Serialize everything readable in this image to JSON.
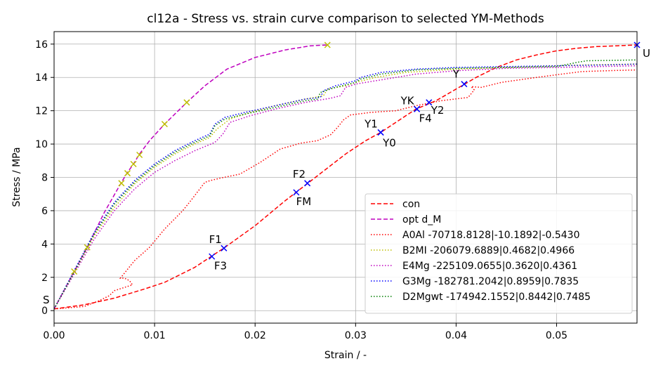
{
  "chart_data": {
    "type": "line",
    "title": "cl12a - Stress vs. strain curve comparison to selected YM-Methods",
    "xlabel": "Strain / -",
    "ylabel": "Stress / MPa",
    "xlim": [
      0.0,
      0.058
    ],
    "ylim": [
      -0.75,
      16.75
    ],
    "xticks": [
      0.0,
      0.01,
      0.02,
      0.03,
      0.04,
      0.05
    ],
    "xticklabels": [
      "0.00",
      "0.01",
      "0.02",
      "0.03",
      "0.04",
      "0.05"
    ],
    "yticks": [
      0,
      2,
      4,
      6,
      8,
      10,
      12,
      14,
      16
    ],
    "yticklabels": [
      "0",
      "2",
      "4",
      "6",
      "8",
      "10",
      "12",
      "14",
      "16"
    ],
    "grid": true,
    "legend_position": "lower-right",
    "series": [
      {
        "name": "con",
        "color": "#ff0000",
        "dash": "dashed",
        "x": [
          0.0,
          0.003,
          0.006,
          0.009,
          0.011,
          0.014,
          0.017,
          0.02,
          0.023,
          0.026,
          0.029,
          0.031,
          0.0325,
          0.034,
          0.036,
          0.038,
          0.04,
          0.042,
          0.044,
          0.046,
          0.048,
          0.05,
          0.052,
          0.054,
          0.056,
          0.058
        ],
        "y": [
          0.1,
          0.35,
          0.75,
          1.3,
          1.7,
          2.6,
          3.8,
          5.1,
          6.6,
          8.0,
          9.4,
          10.2,
          10.7,
          11.3,
          12.1,
          12.6,
          13.3,
          14.0,
          14.6,
          15.05,
          15.35,
          15.6,
          15.75,
          15.85,
          15.9,
          15.95
        ]
      },
      {
        "name": "opt d_M",
        "color": "#bf00bf",
        "dash": "dashed",
        "x": [
          0.0,
          0.002,
          0.0033,
          0.005,
          0.0067,
          0.0073,
          0.0079,
          0.0085,
          0.0095,
          0.011,
          0.0132,
          0.015,
          0.0172,
          0.02,
          0.023,
          0.0255,
          0.0272
        ],
        "y": [
          0.1,
          2.35,
          3.8,
          5.9,
          7.7,
          8.3,
          8.8,
          9.4,
          10.2,
          11.2,
          12.5,
          13.5,
          14.5,
          15.2,
          15.65,
          15.9,
          15.95
        ]
      },
      {
        "name": "A0Al -70718.8128|-10.1892|-0.5430",
        "color": "#ff0000",
        "dash": "dotted",
        "x": [
          0.0,
          0.002,
          0.003,
          0.0045,
          0.0055,
          0.006,
          0.0078,
          0.0075,
          0.007,
          0.0066,
          0.0068,
          0.008,
          0.0095,
          0.011,
          0.0128,
          0.0136,
          0.015,
          0.0155,
          0.0165,
          0.0185,
          0.0205,
          0.0225,
          0.0245,
          0.0262,
          0.0275,
          0.0282,
          0.0288,
          0.0295,
          0.0315,
          0.034,
          0.036,
          0.0385,
          0.0412,
          0.0418,
          0.0415,
          0.0425,
          0.0445,
          0.048,
          0.0505,
          0.0525,
          0.055,
          0.058
        ],
        "y": [
          0.1,
          0.2,
          0.25,
          0.6,
          0.9,
          1.2,
          1.55,
          1.8,
          1.95,
          1.95,
          2.1,
          3.0,
          3.8,
          4.9,
          6.0,
          6.6,
          7.7,
          7.8,
          7.95,
          8.2,
          8.9,
          9.7,
          10.05,
          10.2,
          10.55,
          11.0,
          11.45,
          11.75,
          11.9,
          12.0,
          12.3,
          12.6,
          12.8,
          13.25,
          13.45,
          13.4,
          13.7,
          14.0,
          14.2,
          14.35,
          14.4,
          14.45
        ]
      },
      {
        "name": "B2MI -206079.6889|0.4682|0.4966",
        "color": "#bfbf00",
        "dash": "dotted",
        "x": [
          0.0,
          0.002,
          0.004,
          0.006,
          0.008,
          0.01,
          0.012,
          0.014,
          0.0155,
          0.0162,
          0.0175,
          0.0195,
          0.022,
          0.025,
          0.0268,
          0.0272,
          0.029,
          0.03,
          0.032,
          0.035,
          0.04,
          0.045,
          0.05,
          0.053,
          0.058
        ],
        "y": [
          0.1,
          2.3,
          4.5,
          6.2,
          7.6,
          8.6,
          9.4,
          10.0,
          10.4,
          10.9,
          11.5,
          11.9,
          12.3,
          12.7,
          12.9,
          13.3,
          13.5,
          13.7,
          14.0,
          14.3,
          14.5,
          14.6,
          14.7,
          14.75,
          14.8
        ]
      },
      {
        "name": "E4Mg -225109.0655|0.3620|0.4361",
        "color": "#bf00bf",
        "dash": "dotted",
        "x": [
          0.0,
          0.002,
          0.004,
          0.006,
          0.008,
          0.01,
          0.012,
          0.014,
          0.016,
          0.0168,
          0.0175,
          0.0195,
          0.022,
          0.025,
          0.0275,
          0.0285,
          0.029,
          0.03,
          0.033,
          0.036,
          0.04,
          0.045,
          0.05,
          0.054,
          0.058
        ],
        "y": [
          0.1,
          2.2,
          4.3,
          6.0,
          7.3,
          8.3,
          9.0,
          9.6,
          10.1,
          10.6,
          11.3,
          11.7,
          12.1,
          12.5,
          12.75,
          12.9,
          13.4,
          13.6,
          13.9,
          14.2,
          14.4,
          14.55,
          14.6,
          14.65,
          14.7
        ]
      },
      {
        "name": "G3Mg -182781.2042|0.8959|0.7835",
        "color": "#0000ff",
        "dash": "dotted",
        "x": [
          0.0,
          0.002,
          0.004,
          0.006,
          0.008,
          0.01,
          0.012,
          0.014,
          0.0155,
          0.016,
          0.017,
          0.019,
          0.022,
          0.025,
          0.0265,
          0.0268,
          0.028,
          0.03,
          0.0305,
          0.0325,
          0.036,
          0.04,
          0.045,
          0.05,
          0.055,
          0.058
        ],
        "y": [
          0.1,
          2.4,
          4.7,
          6.5,
          7.8,
          8.8,
          9.6,
          10.2,
          10.6,
          11.2,
          11.6,
          11.9,
          12.3,
          12.7,
          12.8,
          13.2,
          13.5,
          13.8,
          14.0,
          14.3,
          14.5,
          14.6,
          14.65,
          14.7,
          14.75,
          14.8
        ]
      },
      {
        "name": "D2Mgwt -174942.1552|0.8442|0.7485",
        "color": "#007f00",
        "dash": "dotted",
        "x": [
          0.0,
          0.002,
          0.004,
          0.006,
          0.008,
          0.01,
          0.012,
          0.014,
          0.0155,
          0.016,
          0.017,
          0.019,
          0.022,
          0.025,
          0.0262,
          0.0265,
          0.028,
          0.03,
          0.0305,
          0.0325,
          0.036,
          0.04,
          0.045,
          0.05,
          0.052,
          0.053,
          0.058
        ],
        "y": [
          0.1,
          2.3,
          4.6,
          6.4,
          7.7,
          8.7,
          9.5,
          10.1,
          10.5,
          11.1,
          11.5,
          11.8,
          12.2,
          12.6,
          12.7,
          13.1,
          13.4,
          13.7,
          13.9,
          14.2,
          14.45,
          14.55,
          14.6,
          14.65,
          14.9,
          15.0,
          15.05
        ]
      }
    ],
    "yellow_markers": {
      "color": "#bfbf00",
      "x": [
        0.002,
        0.0033,
        0.0067,
        0.0073,
        0.0079,
        0.0085,
        0.011,
        0.0132,
        0.0272
      ],
      "y": [
        2.35,
        3.8,
        7.65,
        8.25,
        8.8,
        9.35,
        11.2,
        12.5,
        15.95
      ]
    },
    "points": [
      {
        "label": "S",
        "x": 0.0,
        "y": 0.1,
        "marker": false,
        "dx": -16,
        "dy": -8
      },
      {
        "label": "U",
        "x": 0.058,
        "y": 15.95,
        "marker": true,
        "dx": 8,
        "dy": 17
      },
      {
        "label": "F1",
        "x": 0.0157,
        "y": 3.25,
        "marker": true,
        "dx": -4,
        "dy": -19
      },
      {
        "label": "F3",
        "x": 0.0169,
        "y": 3.75,
        "marker": true,
        "dx": -14,
        "dy": 30
      },
      {
        "label": "F2",
        "x": 0.0241,
        "y": 7.1,
        "marker": true,
        "dx": -5,
        "dy": -21
      },
      {
        "label": "FM",
        "x": 0.0252,
        "y": 7.65,
        "marker": true,
        "dx": -16,
        "dy": 31
      },
      {
        "label": "Y1",
        "x": 0.0325,
        "y": 10.7,
        "marker": true,
        "dx": -23,
        "dy": -7
      },
      {
        "label": "Y0",
        "x": 0.0325,
        "y": 10.7,
        "marker": true,
        "dx": 3,
        "dy": 20
      },
      {
        "label": "YK",
        "x": 0.0361,
        "y": 12.1,
        "marker": true,
        "dx": -23,
        "dy": -7
      },
      {
        "label": "F4",
        "x": 0.0361,
        "y": 12.1,
        "marker": true,
        "dx": 3,
        "dy": 18
      },
      {
        "label": "Y2",
        "x": 0.0373,
        "y": 12.5,
        "marker": true,
        "dx": 3,
        "dy": 16
      },
      {
        "label": "Y",
        "x": 0.0408,
        "y": 13.6,
        "marker": true,
        "dx": -16,
        "dy": -9
      }
    ]
  }
}
